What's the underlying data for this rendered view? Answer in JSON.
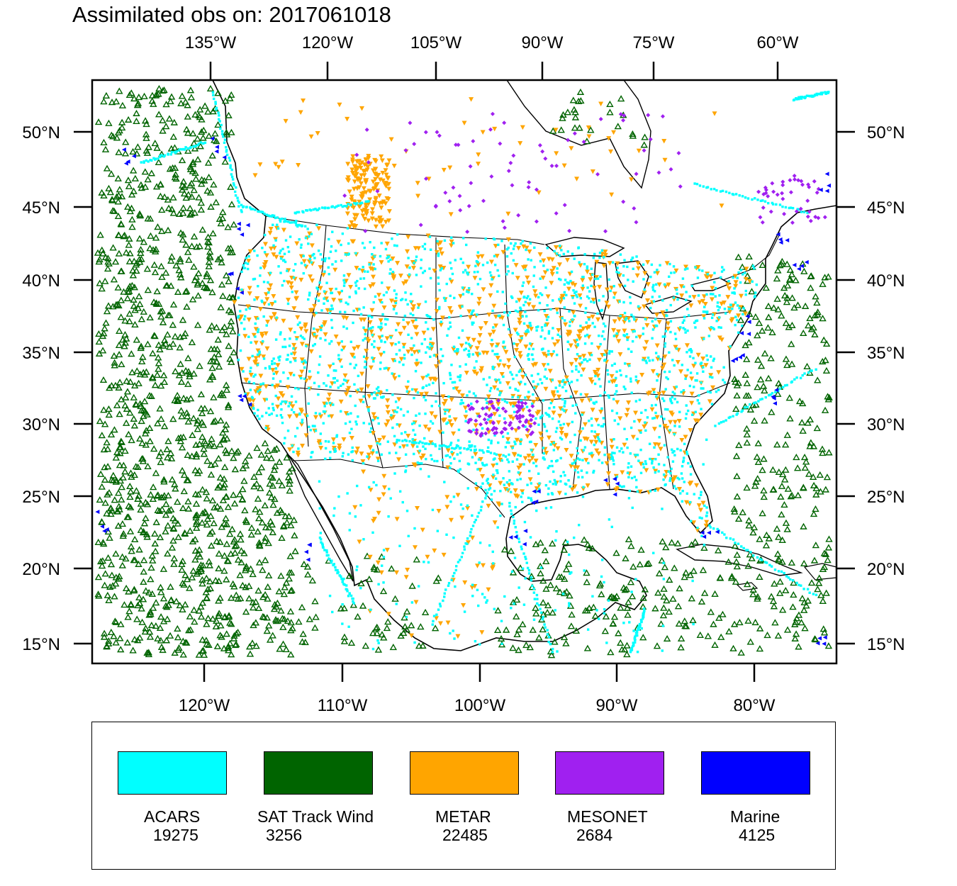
{
  "title": "Assimilated obs on: 2017061018",
  "map": {
    "top_lon_ticks": [
      {
        "value": -135,
        "label": "135°W"
      },
      {
        "value": -120,
        "label": "120°W"
      },
      {
        "value": -105,
        "label": "105°W"
      },
      {
        "value": -90,
        "label": "90°W"
      },
      {
        "value": -75,
        "label": "75°W"
      },
      {
        "value": -60,
        "label": "60°W"
      }
    ],
    "bottom_lon_ticks": [
      {
        "value": -120,
        "label": "120°W"
      },
      {
        "value": -110,
        "label": "110°W"
      },
      {
        "value": -100,
        "label": "100°W"
      },
      {
        "value": -90,
        "label": "90°W"
      },
      {
        "value": -80,
        "label": "80°W"
      }
    ],
    "lat_ticks": [
      {
        "value": 50,
        "label": "50°N"
      },
      {
        "value": 45,
        "label": "45°N"
      },
      {
        "value": 40,
        "label": "40°N"
      },
      {
        "value": 35,
        "label": "35°N"
      },
      {
        "value": 30,
        "label": "30°N"
      },
      {
        "value": 25,
        "label": "25°N"
      },
      {
        "value": 20,
        "label": "20°N"
      },
      {
        "value": 15,
        "label": "15°N"
      }
    ]
  },
  "legend": [
    {
      "name": "ACARS",
      "count": "19275",
      "color": "#00ffff"
    },
    {
      "name": "SAT Track Wind",
      "count": "3256",
      "color": "#006400"
    },
    {
      "name": "METAR",
      "count": "22485",
      "color": "#ffa500"
    },
    {
      "name": "MESONET",
      "count": "2684",
      "color": "#a020f0"
    },
    {
      "name": "Marine",
      "count": "4125",
      "color": "#0000ff"
    }
  ]
}
